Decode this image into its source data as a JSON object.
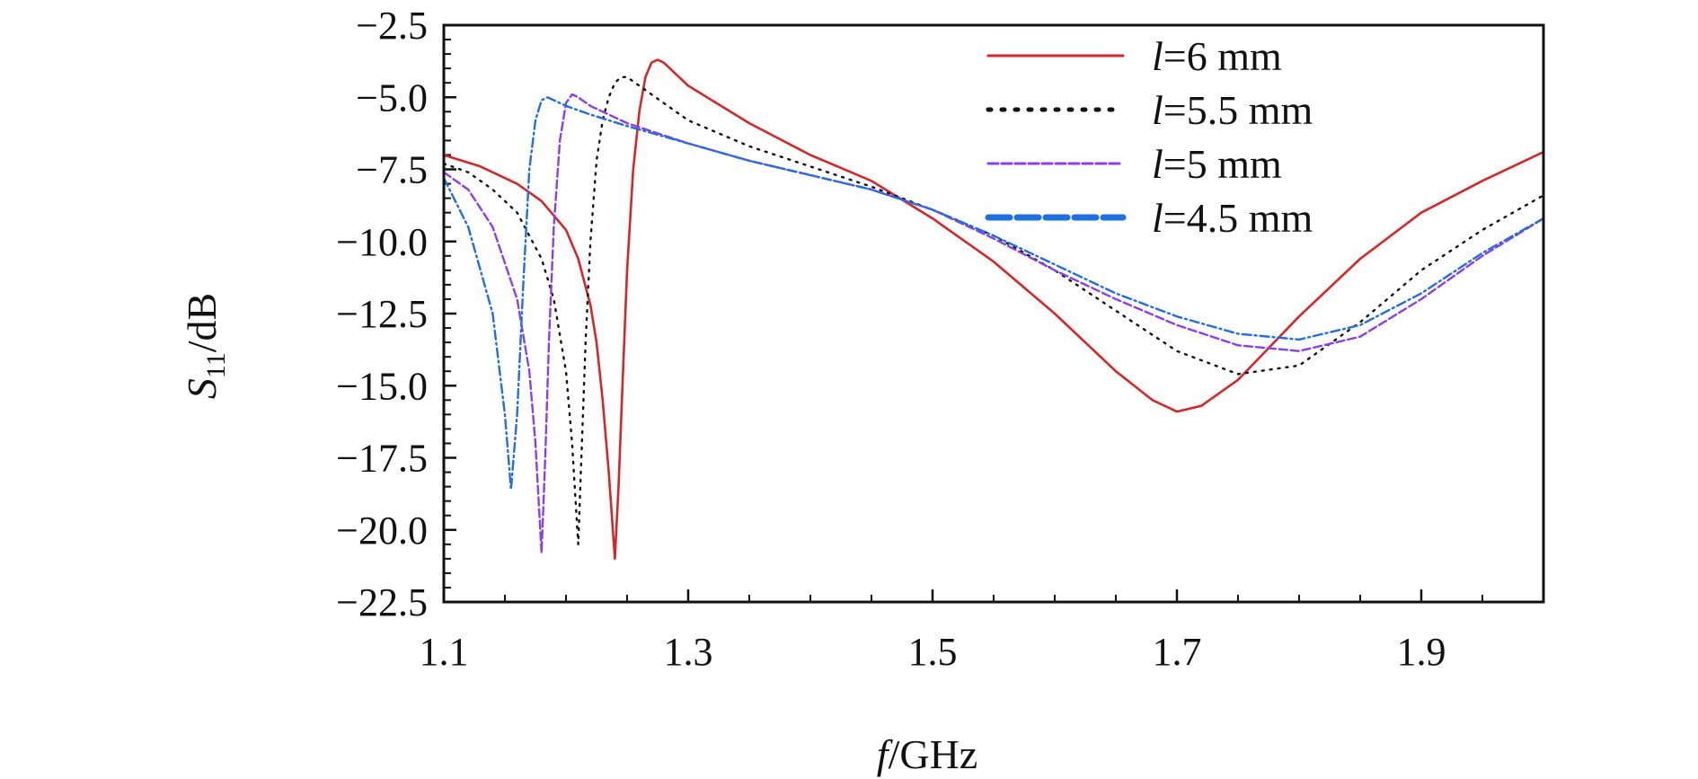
{
  "chart_data": {
    "type": "line",
    "title": "",
    "xlabel": {
      "symbol": "f",
      "unit": "/GHz"
    },
    "ylabel": {
      "symbol": "S",
      "subscript": "11",
      "unit": "/dB"
    },
    "xlim": [
      1.1,
      2.0
    ],
    "ylim": [
      -22.5,
      -2.5
    ],
    "xticks": [
      1.1,
      1.3,
      1.5,
      1.7,
      1.9
    ],
    "xtick_labels": [
      "1.1",
      "1.3",
      "1.5",
      "1.7",
      "1.9"
    ],
    "yticks": [
      -2.5,
      -5.0,
      -7.5,
      -10.0,
      -12.5,
      -15.0,
      -17.5,
      -20.0,
      -22.5
    ],
    "ytick_labels": [
      "−2.5",
      "−5.0",
      "−7.5",
      "−10.0",
      "−12.5",
      "−15.0",
      "−17.5",
      "−20.0",
      "−22.5"
    ],
    "grid": false,
    "legend_position": "top-right",
    "series": [
      {
        "name": "l=6 mm",
        "legend_var": "l",
        "legend_rest": "=6 mm",
        "color": "#d62728",
        "style": "solid",
        "x": [
          1.1,
          1.13,
          1.16,
          1.18,
          1.2,
          1.21,
          1.22,
          1.225,
          1.23,
          1.235,
          1.24,
          1.243,
          1.246,
          1.25,
          1.255,
          1.26,
          1.265,
          1.27,
          1.275,
          1.28,
          1.3,
          1.35,
          1.4,
          1.45,
          1.5,
          1.55,
          1.6,
          1.65,
          1.68,
          1.7,
          1.72,
          1.75,
          1.8,
          1.85,
          1.9,
          1.95,
          2.0
        ],
        "y": [
          -7.0,
          -7.4,
          -8.0,
          -8.6,
          -9.6,
          -10.6,
          -12.2,
          -13.5,
          -15.5,
          -18.0,
          -21.0,
          -18.5,
          -15.2,
          -11.0,
          -7.5,
          -5.5,
          -4.3,
          -3.8,
          -3.7,
          -3.8,
          -4.6,
          -5.9,
          -7.0,
          -7.9,
          -9.2,
          -10.7,
          -12.5,
          -14.5,
          -15.5,
          -15.9,
          -15.7,
          -14.8,
          -12.6,
          -10.6,
          -9.0,
          -7.9,
          -6.9
        ]
      },
      {
        "name": "l=5.5 mm",
        "legend_var": "l",
        "legend_rest": "=5.5 mm",
        "color": "#111111",
        "style": "dotted",
        "x": [
          1.1,
          1.12,
          1.14,
          1.16,
          1.18,
          1.19,
          1.2,
          1.205,
          1.21,
          1.213,
          1.216,
          1.22,
          1.225,
          1.23,
          1.235,
          1.24,
          1.245,
          1.25,
          1.26,
          1.28,
          1.3,
          1.35,
          1.4,
          1.45,
          1.5,
          1.55,
          1.6,
          1.65,
          1.7,
          1.75,
          1.8,
          1.85,
          1.9,
          1.95,
          2.0
        ],
        "y": [
          -7.3,
          -7.6,
          -8.2,
          -9.0,
          -10.6,
          -12.0,
          -14.5,
          -17.0,
          -20.5,
          -17.0,
          -13.5,
          -10.0,
          -7.2,
          -5.8,
          -5.0,
          -4.5,
          -4.3,
          -4.3,
          -4.6,
          -5.2,
          -5.8,
          -6.7,
          -7.4,
          -8.1,
          -8.9,
          -9.8,
          -11.0,
          -12.4,
          -13.8,
          -14.6,
          -14.3,
          -12.8,
          -11.0,
          -9.6,
          -8.4
        ]
      },
      {
        "name": "l=5 mm",
        "legend_var": "l",
        "legend_rest": "=5 mm",
        "color": "#8a3ef0",
        "style": "dashed",
        "x": [
          1.1,
          1.12,
          1.14,
          1.16,
          1.17,
          1.175,
          1.18,
          1.183,
          1.186,
          1.19,
          1.195,
          1.2,
          1.205,
          1.21,
          1.22,
          1.25,
          1.3,
          1.35,
          1.4,
          1.45,
          1.5,
          1.55,
          1.6,
          1.65,
          1.7,
          1.75,
          1.8,
          1.85,
          1.9,
          1.95,
          2.0
        ],
        "y": [
          -7.6,
          -8.2,
          -9.5,
          -12.0,
          -14.5,
          -17.0,
          -20.8,
          -17.5,
          -13.5,
          -9.5,
          -6.5,
          -5.2,
          -4.9,
          -5.0,
          -5.3,
          -5.9,
          -6.6,
          -7.2,
          -7.7,
          -8.2,
          -8.9,
          -9.9,
          -11.0,
          -12.0,
          -12.9,
          -13.6,
          -13.8,
          -13.3,
          -12.0,
          -10.5,
          -9.2
        ]
      },
      {
        "name": "l=4.5 mm",
        "legend_var": "l",
        "legend_rest": "=4.5 mm",
        "color": "#1f6fe0",
        "style": "dashdot",
        "x": [
          1.1,
          1.12,
          1.14,
          1.15,
          1.155,
          1.16,
          1.165,
          1.17,
          1.175,
          1.18,
          1.185,
          1.19,
          1.2,
          1.22,
          1.25,
          1.3,
          1.35,
          1.4,
          1.45,
          1.5,
          1.55,
          1.6,
          1.65,
          1.7,
          1.75,
          1.8,
          1.85,
          1.9,
          1.95,
          2.0
        ],
        "y": [
          -7.8,
          -9.5,
          -12.5,
          -16.0,
          -18.6,
          -16.0,
          -11.5,
          -7.5,
          -5.8,
          -5.1,
          -5.0,
          -5.1,
          -5.3,
          -5.6,
          -6.0,
          -6.6,
          -7.2,
          -7.7,
          -8.2,
          -8.9,
          -9.8,
          -10.8,
          -11.8,
          -12.6,
          -13.2,
          -13.4,
          -12.9,
          -11.8,
          -10.4,
          -9.2
        ]
      }
    ]
  }
}
